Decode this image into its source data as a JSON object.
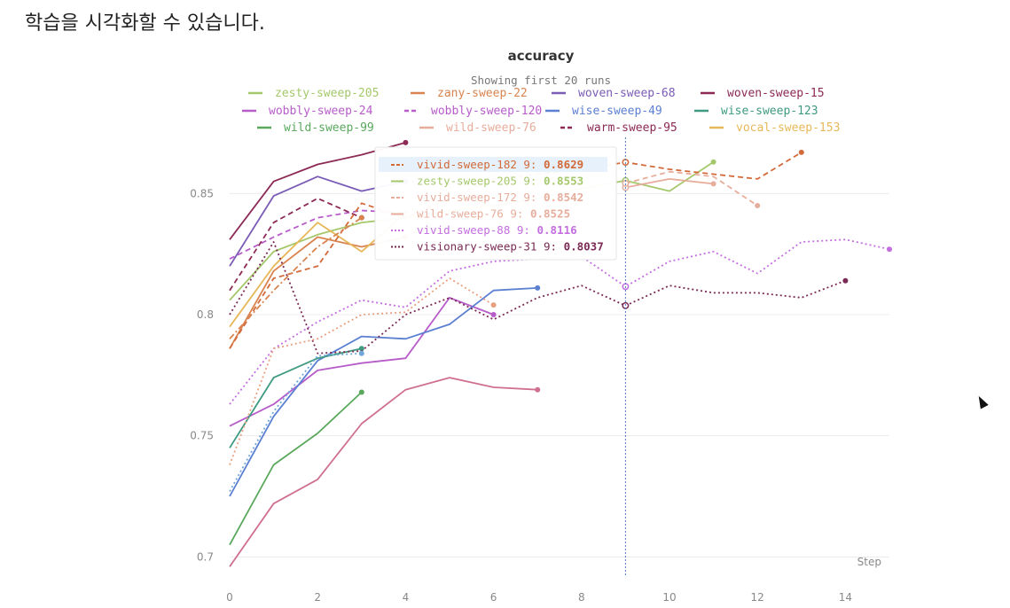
{
  "caption": "학습을 시각화할 수 있습니다.",
  "chart_data": {
    "type": "line",
    "title": "accuracy",
    "subtitle": "Showing first 20 runs",
    "xlabel": "Step",
    "ylabel": "",
    "xlim": [
      0,
      15
    ],
    "ylim": [
      0.695,
      0.875
    ],
    "xticks": [
      0,
      2,
      4,
      6,
      8,
      10,
      12,
      14
    ],
    "yticks": [
      0.7,
      0.75,
      0.8,
      0.85
    ],
    "grid": true,
    "legend": "top",
    "hover_step": 9,
    "series": [
      {
        "name": "zesty-sweep-205",
        "color": "#a4c86b",
        "dash": "solid",
        "legend": true,
        "x": [
          0,
          1,
          2,
          3,
          4,
          5,
          6,
          7,
          8,
          9,
          10,
          11
        ],
        "y": [
          0.806,
          0.826,
          0.833,
          0.838,
          0.84,
          0.843,
          0.845,
          0.848,
          0.852,
          0.8553,
          0.851,
          0.863
        ]
      },
      {
        "name": "zany-sweep-22",
        "color": "#d9844f",
        "dash": "solid",
        "legend": true,
        "x": [
          0,
          1,
          2,
          3,
          4
        ],
        "y": [
          0.786,
          0.818,
          0.832,
          0.828,
          0.832
        ]
      },
      {
        "name": "woven-sweep-68",
        "color": "#7a5bb5",
        "dash": "solid",
        "legend": true,
        "x": [
          0,
          1,
          2,
          3,
          4
        ],
        "y": [
          0.82,
          0.849,
          0.857,
          0.851,
          0.855
        ]
      },
      {
        "name": "woven-sweep-15",
        "color": "#8c2a55",
        "dash": "solid",
        "legend": true,
        "x": [
          0,
          1,
          2,
          3,
          4
        ],
        "y": [
          0.831,
          0.855,
          0.862,
          0.866,
          0.871
        ]
      },
      {
        "name": "wobbly-sweep-24",
        "color": "#b75cc9",
        "dash": "solid",
        "legend": true,
        "x": [
          0,
          1,
          2,
          3,
          4,
          5,
          6
        ],
        "y": [
          0.754,
          0.763,
          0.777,
          0.78,
          0.782,
          0.807,
          0.8
        ]
      },
      {
        "name": "wobbly-sweep-120",
        "color": "#b75cc9",
        "dash": "dash",
        "legend": true,
        "x": [
          0,
          1,
          2,
          3,
          4
        ],
        "y": [
          0.823,
          0.832,
          0.84,
          0.843,
          0.842
        ]
      },
      {
        "name": "wise-sweep-49",
        "color": "#5b7fd1",
        "dash": "solid",
        "legend": true,
        "x": [
          0,
          1,
          2,
          3,
          4,
          5,
          6,
          7
        ],
        "y": [
          0.725,
          0.758,
          0.781,
          0.791,
          0.79,
          0.796,
          0.81,
          0.811
        ]
      },
      {
        "name": "wise-sweep-123",
        "color": "#3e9a80",
        "dash": "solid",
        "legend": true,
        "x": [
          0,
          1,
          2,
          3
        ],
        "y": [
          0.745,
          0.774,
          0.782,
          0.786
        ]
      },
      {
        "name": "wild-sweep-99",
        "color": "#59a85c",
        "dash": "solid",
        "legend": true,
        "x": [
          0,
          1,
          2,
          3
        ],
        "y": [
          0.705,
          0.738,
          0.751,
          0.768
        ]
      },
      {
        "name": "wild-sweep-76",
        "color": "#e7ad9c",
        "dash": "solid",
        "legend": true,
        "x": [
          9,
          10,
          11
        ],
        "y": [
          0.8525,
          0.856,
          0.854
        ]
      },
      {
        "name": "warm-sweep-95",
        "color": "#8c2a55",
        "dash": "dash",
        "legend": true,
        "x": [
          0,
          1,
          2,
          3
        ],
        "y": [
          0.81,
          0.838,
          0.848,
          0.84
        ]
      },
      {
        "name": "vocal-sweep-153",
        "color": "#e6b85a",
        "dash": "solid",
        "legend": true,
        "x": [
          0,
          1,
          2,
          3,
          4
        ],
        "y": [
          0.795,
          0.82,
          0.838,
          0.826,
          0.842
        ]
      },
      {
        "name": "vivid-sweep-182",
        "color": "#d26a3a",
        "dash": "dash",
        "legend": false,
        "x": [
          0,
          1,
          2,
          3,
          4,
          5,
          6,
          7,
          8,
          9,
          10,
          11,
          12,
          13
        ],
        "y": [
          0.786,
          0.815,
          0.82,
          0.846,
          0.84,
          0.848,
          0.856,
          0.858,
          0.86,
          0.8629,
          0.86,
          0.858,
          0.856,
          0.867
        ]
      },
      {
        "name": "vivid-sweep-172",
        "color": "#e7ad9c",
        "dash": "dash",
        "legend": false,
        "x": [
          9,
          10,
          11,
          12
        ],
        "y": [
          0.8542,
          0.859,
          0.857,
          0.845
        ]
      },
      {
        "name": "vivid-sweep-88",
        "color": "#c46ee0",
        "dash": "dot",
        "legend": false,
        "x": [
          0,
          1,
          2,
          3,
          4,
          5,
          6,
          7,
          8,
          9,
          10,
          11,
          12,
          13,
          14,
          15
        ],
        "y": [
          0.763,
          0.786,
          0.797,
          0.806,
          0.803,
          0.818,
          0.822,
          0.823,
          0.824,
          0.8116,
          0.822,
          0.826,
          0.817,
          0.83,
          0.831,
          0.827
        ]
      },
      {
        "name": "visionary-sweep-31",
        "color": "#7a2a55",
        "dash": "dot",
        "legend": false,
        "x": [
          0,
          1,
          2,
          3,
          4,
          5,
          6,
          7,
          8,
          9,
          10,
          11,
          12,
          13,
          14
        ],
        "y": [
          0.8,
          0.83,
          0.784,
          0.785,
          0.8,
          0.807,
          0.798,
          0.807,
          0.812,
          0.8037,
          0.812,
          0.809,
          0.809,
          0.807,
          0.814
        ]
      },
      {
        "name": "",
        "color": "#e8a080",
        "dash": "dot",
        "legend": false,
        "x": [
          0,
          1,
          2,
          3,
          4,
          5,
          6
        ],
        "y": [
          0.738,
          0.786,
          0.79,
          0.8,
          0.801,
          0.815,
          0.804
        ]
      },
      {
        "name": "",
        "color": "#d9844f",
        "dash": "dashdot",
        "legend": false,
        "x": [
          0,
          1,
          2,
          3
        ],
        "y": [
          0.79,
          0.81,
          0.828,
          0.84
        ]
      },
      {
        "name": "",
        "color": "#d0708f",
        "dash": "solid",
        "legend": false,
        "x": [
          0,
          1,
          2,
          3,
          4,
          5,
          6,
          7
        ],
        "y": [
          0.696,
          0.722,
          0.732,
          0.755,
          0.769,
          0.774,
          0.77,
          0.769
        ]
      },
      {
        "name": "",
        "color": "#6ea7d8",
        "dash": "dot",
        "legend": false,
        "x": [
          0,
          1,
          2,
          3
        ],
        "y": [
          0.727,
          0.76,
          0.783,
          0.784
        ]
      }
    ],
    "tooltip": {
      "rows": [
        {
          "name": "vivid-sweep-182",
          "step": "9:",
          "value": "0.8629",
          "color": "#d26a3a",
          "dash": "dash",
          "highlight": true
        },
        {
          "name": "zesty-sweep-205",
          "step": "9:",
          "value": "0.8553",
          "color": "#a4c86b",
          "dash": "solid",
          "highlight": false
        },
        {
          "name": "vivid-sweep-172",
          "step": "9:",
          "value": "0.8542",
          "color": "#e7ad9c",
          "dash": "dash",
          "highlight": false
        },
        {
          "name": "wild-sweep-76",
          "step": "9:",
          "value": "0.8525",
          "color": "#e7ad9c",
          "dash": "solid",
          "highlight": false
        },
        {
          "name": "vivid-sweep-88",
          "step": "9:",
          "value": "0.8116",
          "color": "#c46ee0",
          "dash": "dot",
          "highlight": false
        },
        {
          "name": "visionary-sweep-31",
          "step": "9:",
          "value": "0.8037",
          "color": "#7a2a55",
          "dash": "dot",
          "highlight": false
        }
      ]
    }
  }
}
